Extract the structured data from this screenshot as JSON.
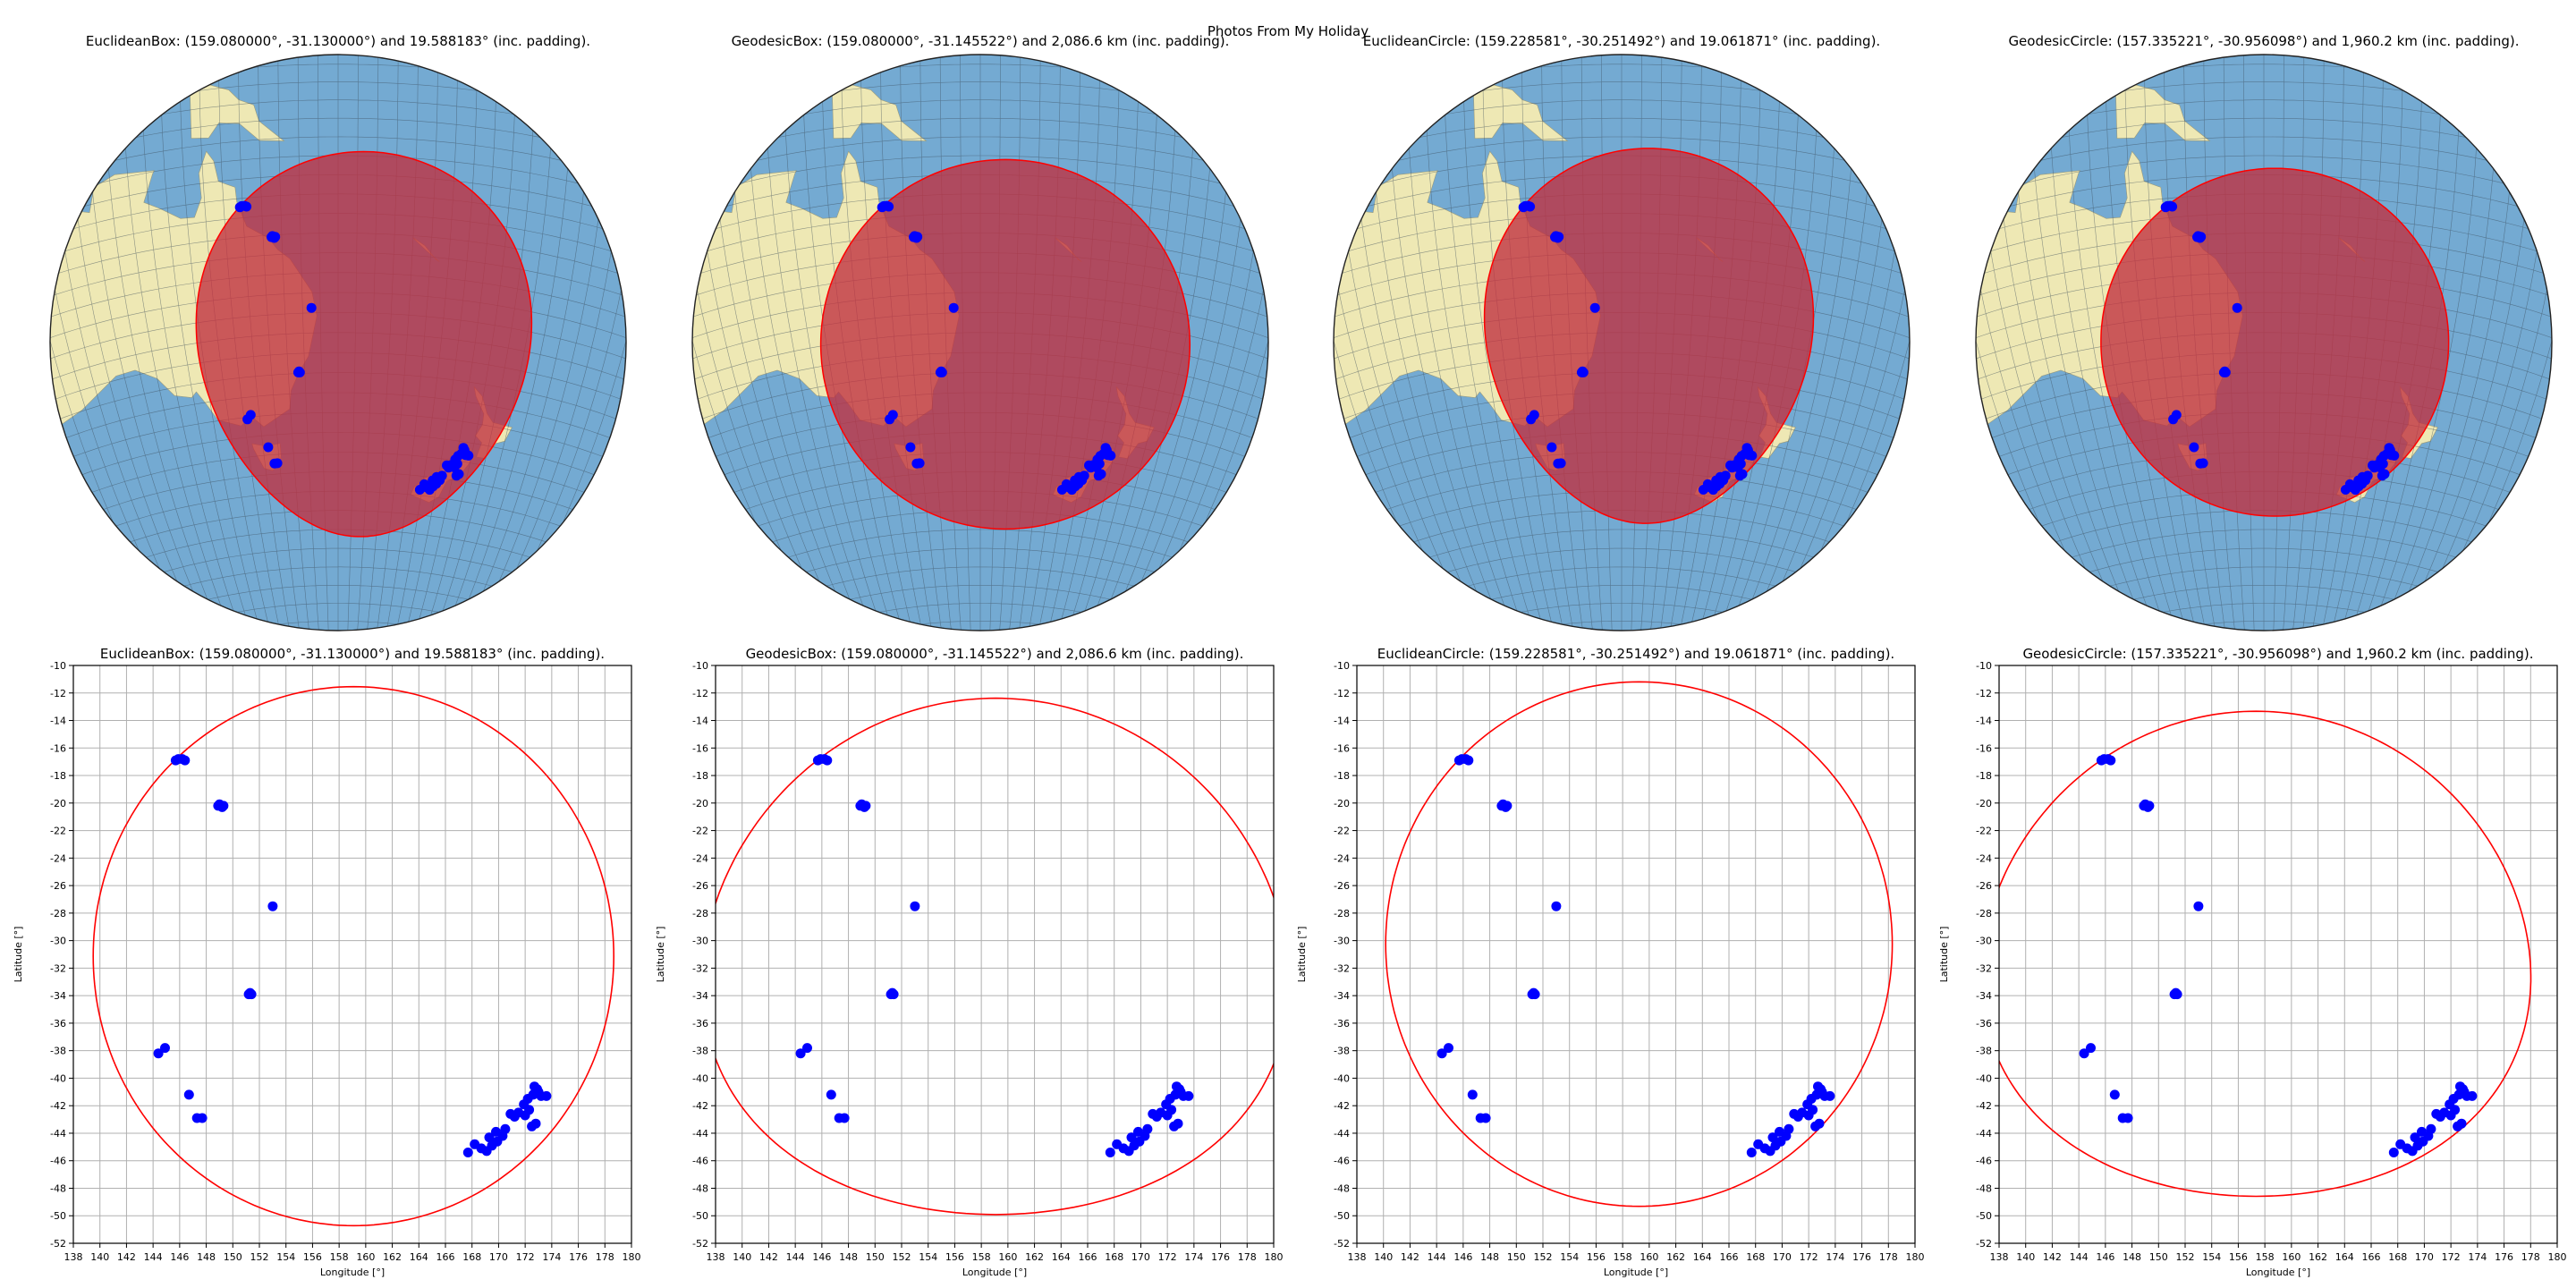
{
  "figure": {
    "title": "Photos From My Holiday"
  },
  "colors": {
    "point": "#0000ff",
    "ring": "#ff0000",
    "fill": "#c0303f",
    "ocean": "#74aad2",
    "land": "#eee8b4",
    "grid": "#b0b0b0"
  },
  "points": [
    [
      145.7,
      -16.9
    ],
    [
      146.4,
      -16.9
    ],
    [
      145.9,
      -16.8
    ],
    [
      146.2,
      -16.8
    ],
    [
      148.9,
      -20.2
    ],
    [
      149.2,
      -20.3
    ],
    [
      149.0,
      -20.1
    ],
    [
      149.3,
      -20.2
    ],
    [
      153.0,
      -27.5
    ],
    [
      151.2,
      -33.9
    ],
    [
      151.4,
      -33.9
    ],
    [
      151.3,
      -33.8
    ],
    [
      144.9,
      -37.8
    ],
    [
      144.4,
      -38.2
    ],
    [
      146.7,
      -41.2
    ],
    [
      147.3,
      -42.9
    ],
    [
      147.7,
      -42.9
    ],
    [
      167.7,
      -45.4
    ],
    [
      168.2,
      -44.8
    ],
    [
      168.7,
      -45.1
    ],
    [
      169.1,
      -45.3
    ],
    [
      169.5,
      -44.9
    ],
    [
      169.3,
      -44.3
    ],
    [
      169.9,
      -44.6
    ],
    [
      170.3,
      -44.2
    ],
    [
      170.5,
      -43.7
    ],
    [
      169.8,
      -43.9
    ],
    [
      171.2,
      -42.8
    ],
    [
      171.5,
      -42.5
    ],
    [
      171.9,
      -41.9
    ],
    [
      172.2,
      -41.5
    ],
    [
      172.6,
      -41.2
    ],
    [
      172.9,
      -40.8
    ],
    [
      173.2,
      -41.3
    ],
    [
      173.6,
      -41.3
    ],
    [
      172.3,
      -42.3
    ],
    [
      172.8,
      -43.3
    ],
    [
      172.5,
      -43.5
    ],
    [
      172.0,
      -42.7
    ],
    [
      170.9,
      -42.6
    ],
    [
      172.7,
      -40.6
    ],
    [
      173.0,
      -41.0
    ]
  ],
  "chart_data": [
    {
      "type": "map",
      "title": "EuclideanBox: (159.080000°, -31.130000°) and 19.588183° (inc. padding).",
      "region": {
        "kind": "euclidean",
        "center": [
          159.08,
          -31.13
        ],
        "radius_deg": 19.588183
      }
    },
    {
      "type": "map",
      "title": "GeodesicBox: (159.080000°, -31.145522°) and 2,086.6 km (inc. padding).",
      "region": {
        "kind": "geodesic",
        "center": [
          159.08,
          -31.145522
        ],
        "radius_km": 2086.6
      }
    },
    {
      "type": "map",
      "title": "EuclideanCircle: (159.228581°, -30.251492°) and 19.061871° (inc. padding).",
      "region": {
        "kind": "euclidean",
        "center": [
          159.228581,
          -30.251492
        ],
        "radius_deg": 19.061871
      }
    },
    {
      "type": "map",
      "title": "GeodesicCircle: (157.335221°, -30.956098°) and 1,960.2 km (inc. padding).",
      "region": {
        "kind": "geodesic",
        "center": [
          157.335221,
          -30.956098
        ],
        "radius_km": 1960.2
      }
    },
    {
      "type": "scatter",
      "title": "EuclideanBox: (159.080000°, -31.130000°) and 19.588183° (inc. padding).",
      "xlabel": "Longitude [°]",
      "ylabel": "Latitude [°]",
      "xlim": [
        138,
        180
      ],
      "ylim": [
        -52,
        -10
      ],
      "xticks": [
        138,
        140,
        142,
        144,
        146,
        148,
        150,
        152,
        154,
        156,
        158,
        160,
        162,
        164,
        166,
        168,
        170,
        172,
        174,
        176,
        178,
        180
      ],
      "yticks": [
        -52,
        -50,
        -48,
        -46,
        -44,
        -42,
        -40,
        -38,
        -36,
        -34,
        -32,
        -30,
        -28,
        -26,
        -24,
        -22,
        -20,
        -18,
        -16,
        -14,
        -12,
        -10
      ],
      "grid": true,
      "region": {
        "kind": "euclidean",
        "center": [
          159.08,
          -31.13
        ],
        "radius_deg": 19.588183
      }
    },
    {
      "type": "scatter",
      "title": "GeodesicBox: (159.080000°, -31.145522°) and 2,086.6 km (inc. padding).",
      "xlabel": "Longitude [°]",
      "ylabel": "Latitude [°]",
      "xlim": [
        138,
        180
      ],
      "ylim": [
        -52,
        -10
      ],
      "xticks": [
        138,
        140,
        142,
        144,
        146,
        148,
        150,
        152,
        154,
        156,
        158,
        160,
        162,
        164,
        166,
        168,
        170,
        172,
        174,
        176,
        178,
        180
      ],
      "yticks": [
        -52,
        -50,
        -48,
        -46,
        -44,
        -42,
        -40,
        -38,
        -36,
        -34,
        -32,
        -30,
        -28,
        -26,
        -24,
        -22,
        -20,
        -18,
        -16,
        -14,
        -12,
        -10
      ],
      "grid": true,
      "region": {
        "kind": "geodesic",
        "center": [
          159.08,
          -31.145522
        ],
        "radius_km": 2086.6
      }
    },
    {
      "type": "scatter",
      "title": "EuclideanCircle: (159.228581°, -30.251492°) and 19.061871° (inc. padding).",
      "xlabel": "Longitude [°]",
      "ylabel": "Latitude [°]",
      "xlim": [
        138,
        180
      ],
      "ylim": [
        -52,
        -10
      ],
      "xticks": [
        138,
        140,
        142,
        144,
        146,
        148,
        150,
        152,
        154,
        156,
        158,
        160,
        162,
        164,
        166,
        168,
        170,
        172,
        174,
        176,
        178,
        180
      ],
      "yticks": [
        -52,
        -50,
        -48,
        -46,
        -44,
        -42,
        -40,
        -38,
        -36,
        -34,
        -32,
        -30,
        -28,
        -26,
        -24,
        -22,
        -20,
        -18,
        -16,
        -14,
        -12,
        -10
      ],
      "grid": true,
      "region": {
        "kind": "euclidean",
        "center": [
          159.228581,
          -30.251492
        ],
        "radius_deg": 19.061871
      }
    },
    {
      "type": "scatter",
      "title": "GeodesicCircle: (157.335221°, -30.956098°) and 1,960.2 km (inc. padding).",
      "xlabel": "Longitude [°]",
      "ylabel": "Latitude [°]",
      "xlim": [
        138,
        180
      ],
      "ylim": [
        -52,
        -10
      ],
      "xticks": [
        138,
        140,
        142,
        144,
        146,
        148,
        150,
        152,
        154,
        156,
        158,
        160,
        162,
        164,
        166,
        168,
        170,
        172,
        174,
        176,
        178,
        180
      ],
      "yticks": [
        -52,
        -50,
        -48,
        -46,
        -44,
        -42,
        -40,
        -38,
        -36,
        -34,
        -32,
        -30,
        -28,
        -26,
        -24,
        -22,
        -20,
        -18,
        -16,
        -14,
        -12,
        -10
      ],
      "grid": true,
      "region": {
        "kind": "geodesic",
        "center": [
          157.335221,
          -30.956098
        ],
        "radius_km": 1960.2
      }
    }
  ]
}
